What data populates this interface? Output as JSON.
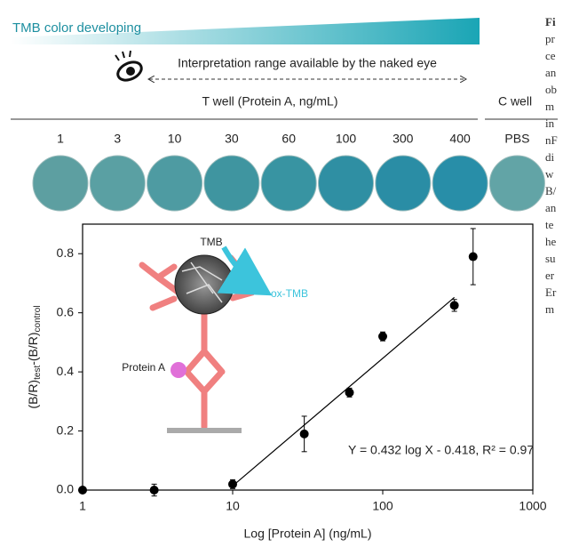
{
  "header": {
    "gradient_label": "TMB color developing",
    "range_label": "Interpretation range available by the naked eye",
    "t_well_label": "T well (Protein A, ng/mL)",
    "c_well_label": "C well"
  },
  "wells": [
    {
      "label": "1",
      "color": "#5d9fa1"
    },
    {
      "label": "3",
      "color": "#5aa0a3"
    },
    {
      "label": "10",
      "color": "#4e9ba2"
    },
    {
      "label": "30",
      "color": "#3f95a0"
    },
    {
      "label": "60",
      "color": "#3894a2"
    },
    {
      "label": "100",
      "color": "#2f8fa3"
    },
    {
      "label": "300",
      "color": "#2a8da5"
    },
    {
      "label": "400",
      "color": "#288ea8"
    },
    {
      "label": "PBS",
      "color": "#62a4a6"
    }
  ],
  "inset": {
    "tmb": "TMB",
    "ox_tmb": "ox-TMB",
    "protein": "Protein A"
  },
  "caption_fragments": [
    "Fi",
    "pr",
    "ce",
    "an",
    "ob",
    "m",
    "in",
    "nF",
    "di",
    "w",
    "B/",
    "an",
    "te",
    "he",
    "su",
    "er",
    "Er",
    "m"
  ],
  "chart_data": {
    "type": "scatter",
    "x_label": "Log [Protein A] (ng/mL)",
    "y_label": [
      "(B/R)",
      "test",
      "-(B/R)",
      "control"
    ],
    "log_x": true,
    "xlim": [
      1,
      1000
    ],
    "xticks": [
      1,
      10,
      100,
      1000
    ],
    "ylim": [
      0,
      0.9
    ],
    "yticks": [
      {
        "value": 0,
        "label": "0.0"
      },
      0.2,
      0.4,
      0.6,
      0.8
    ],
    "x": [
      1,
      3,
      10,
      30,
      60,
      100,
      300,
      400
    ],
    "series": [
      {
        "name": "Protein A",
        "color": "#000000",
        "values": [
          0,
          0,
          0.02,
          0.19,
          0.33,
          0.52,
          0.625,
          0.79
        ],
        "errors": [
          0,
          0.02,
          0.015,
          0.06,
          0.015,
          0.015,
          0.02,
          0.095
        ]
      }
    ],
    "fit_line": {
      "x": [
        10,
        300
      ],
      "y": [
        0.014,
        0.652
      ]
    },
    "annotation": "Y = 0.432 log X - 0.418, R² = 0.97"
  }
}
